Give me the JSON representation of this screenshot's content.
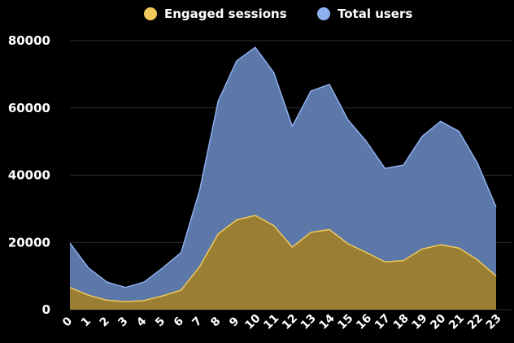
{
  "chart_data": {
    "type": "area",
    "title": "",
    "xlabel": "",
    "ylabel": "",
    "x": [
      "0",
      "1",
      "2",
      "3",
      "4",
      "5",
      "6",
      "7",
      "8",
      "9",
      "10",
      "11",
      "12",
      "13",
      "14",
      "15",
      "16",
      "17",
      "18",
      "19",
      "20",
      "21",
      "22",
      "23"
    ],
    "ylim": [
      0,
      80000
    ],
    "yticks": [
      "0",
      "20000",
      "40000",
      "60000",
      "80000"
    ],
    "grid": true,
    "legend": "top-center",
    "series": [
      {
        "name": "Total users",
        "color": "#8fb0f0",
        "fill": "#5b78a8",
        "values": [
          19800,
          12400,
          8200,
          6600,
          8200,
          12400,
          17000,
          35500,
          62000,
          74000,
          78000,
          70500,
          54500,
          65000,
          67000,
          56500,
          50000,
          42000,
          43000,
          51500,
          56000,
          53000,
          43500,
          30500
        ]
      },
      {
        "name": "Engaged sessions",
        "color": "#f0c95a",
        "fill": "#9a7e33",
        "values": [
          6600,
          4300,
          2800,
          2400,
          2700,
          4100,
          5800,
          12800,
          22500,
          26700,
          28000,
          25000,
          18600,
          23000,
          23800,
          19600,
          17000,
          14200,
          14600,
          18000,
          19300,
          18300,
          14800,
          10000
        ]
      }
    ]
  }
}
